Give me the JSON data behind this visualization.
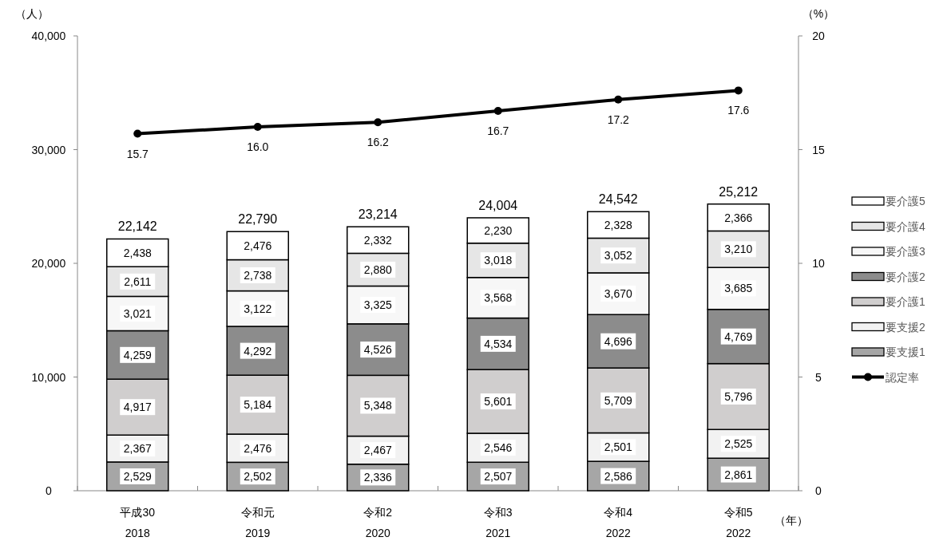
{
  "chart_data": {
    "type": "bar",
    "stacked": true,
    "categories": [
      "平成30\n2018",
      "令和元\n2019",
      "令和2\n2020",
      "令和3\n2021",
      "令和4\n2022",
      "令和5\n2022"
    ],
    "series": [
      {
        "name": "要支援1",
        "color": "#a6a6a6",
        "values": [
          2529,
          2502,
          2336,
          2507,
          2586,
          2861
        ],
        "value_labels": [
          "2,529",
          "2,502",
          "2,336",
          "2,507",
          "2,586",
          "2,861"
        ]
      },
      {
        "name": "要支援2",
        "color": "#f2f2f2",
        "values": [
          2367,
          2476,
          2467,
          2546,
          2501,
          2525
        ],
        "value_labels": [
          "2,367",
          "2,476",
          "2,467",
          "2,546",
          "2,501",
          "2,525"
        ]
      },
      {
        "name": "要介護1",
        "color": "#d0cece",
        "values": [
          4917,
          5184,
          5348,
          5601,
          5709,
          5796
        ],
        "value_labels": [
          "4,917",
          "5,184",
          "5,348",
          "5,601",
          "5,709",
          "5,796"
        ]
      },
      {
        "name": "要介護2",
        "color": "#8c8c8c",
        "values": [
          4259,
          4292,
          4526,
          4534,
          4696,
          4769
        ],
        "value_labels": [
          "4,259",
          "4,292",
          "4,526",
          "4,534",
          "4,696",
          "4,769"
        ]
      },
      {
        "name": "要介護3",
        "color": "#f7f7f7",
        "values": [
          3021,
          3122,
          3325,
          3568,
          3670,
          3685
        ],
        "value_labels": [
          "3,021",
          "3,122",
          "3,325",
          "3,568",
          "3,670",
          "3,685"
        ]
      },
      {
        "name": "要介護4",
        "color": "#e6e6e6",
        "values": [
          2611,
          2738,
          2880,
          3018,
          3052,
          3210
        ],
        "value_labels": [
          "2,611",
          "2,738",
          "2,880",
          "3,018",
          "3,052",
          "3,210"
        ]
      },
      {
        "name": "要介護5",
        "color": "#ffffff",
        "values": [
          2438,
          2476,
          2332,
          2230,
          2328,
          2366
        ],
        "value_labels": [
          "2,438",
          "2,476",
          "2,332",
          "2,230",
          "2,328",
          "2,366"
        ]
      },
      {
        "name": "認定率",
        "type": "line",
        "axis": "y2",
        "color": "#000000",
        "marker": "circle",
        "values": [
          15.7,
          16.0,
          16.2,
          16.7,
          17.2,
          17.6
        ],
        "value_labels": [
          "15.7",
          "16.0",
          "16.2",
          "16.7",
          "17.2",
          "17.6"
        ]
      }
    ],
    "totals": [
      "22,142",
      "22,790",
      "23,214",
      "24,004",
      "24,542",
      "25,212"
    ],
    "ylim": [
      0,
      40000
    ],
    "yticks": [
      0,
      {
        "value": 10000,
        "label": "10,000"
      },
      {
        "value": 20000,
        "label": "20,000"
      },
      {
        "value": 30000,
        "label": "30,000"
      },
      {
        "value": 40000,
        "label": "40,000"
      }
    ],
    "y2lim": [
      0,
      20
    ],
    "y2ticks": [
      0,
      5,
      10,
      15,
      20
    ],
    "ylabel": "（人）",
    "y2label": "（%）",
    "xlabel": "（年）",
    "legend": "right",
    "grid": false
  }
}
